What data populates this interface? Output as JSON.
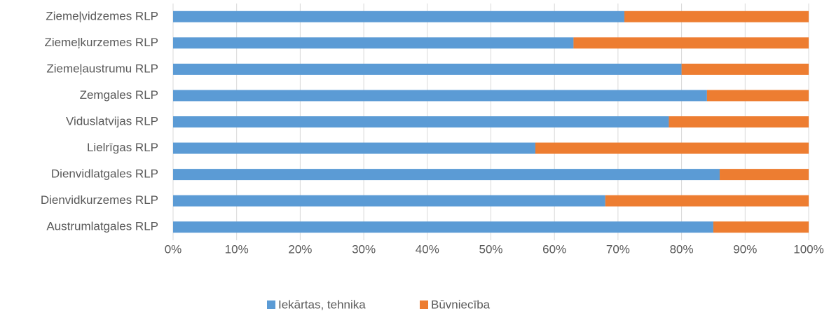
{
  "chart_data": {
    "type": "bar",
    "orientation": "horizontal",
    "stacked": true,
    "categories": [
      "Ziemeļvidzemes RLP",
      "Ziemeļkurzemes RLP",
      "Ziemeļaustrumu RLP",
      "Zemgales RLP",
      "Viduslatvijas RLP",
      "Lielrīgas RLP",
      "Dienvidlatgales RLP",
      "Dienvidkurzemes RLP",
      "Austrumlatgales RLP"
    ],
    "series": [
      {
        "name": "Iekārtas, tehnika",
        "color": "#5b9bd5",
        "values": [
          71,
          63,
          80,
          84,
          78,
          57,
          86,
          68,
          85
        ]
      },
      {
        "name": "Būvniecība",
        "color": "#ed7d31",
        "values": [
          29,
          37,
          20,
          16,
          22,
          43,
          14,
          32,
          15
        ]
      }
    ],
    "xlim": [
      0,
      100
    ],
    "xticks": [
      {
        "value": 0,
        "label": "0%"
      },
      {
        "value": 10,
        "label": "10%"
      },
      {
        "value": 20,
        "label": "20%"
      },
      {
        "value": 30,
        "label": "30%"
      },
      {
        "value": 40,
        "label": "40%"
      },
      {
        "value": 50,
        "label": "50%"
      },
      {
        "value": 60,
        "label": "60%"
      },
      {
        "value": 70,
        "label": "70%"
      },
      {
        "value": 80,
        "label": "80%"
      },
      {
        "value": 90,
        "label": "90%"
      },
      {
        "value": 100,
        "label": "100%"
      }
    ],
    "grid": true,
    "legend": "bottom"
  }
}
